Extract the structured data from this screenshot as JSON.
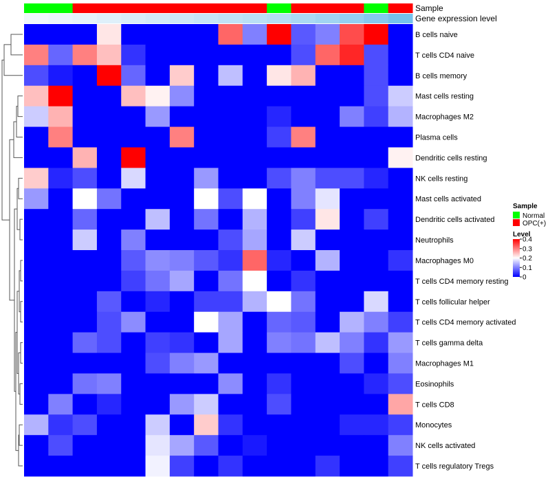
{
  "chart_data": {
    "type": "heatmap",
    "title": "",
    "annotation_rows": [
      {
        "label": "Sample",
        "values": [
          "Normal",
          "Normal",
          "OPC(+)",
          "OPC(+)",
          "OPC(+)",
          "OPC(+)",
          "OPC(+)",
          "OPC(+)",
          "OPC(+)",
          "OPC(+)",
          "Normal",
          "OPC(+)",
          "OPC(+)",
          "OPC(+)",
          "Normal",
          "OPC(+)"
        ]
      },
      {
        "label": "Gene expression level",
        "values": [
          0.02,
          0.05,
          0.08,
          0.12,
          0.16,
          0.2,
          0.24,
          0.28,
          0.32,
          0.36,
          0.4,
          0.46,
          0.52,
          0.6,
          0.7,
          0.8
        ]
      }
    ],
    "rows": [
      "B cells naive",
      "T cells CD4 naive",
      "B cells memory",
      "Mast cells resting",
      "Macrophages M2",
      "Plasma cells",
      "Dendritic cells resting",
      "NK cells resting",
      "Mast cells activated",
      "Dendritic cells activated",
      "Neutrophils",
      "Macrophages M0",
      "T cells CD4 memory resting",
      "T cells follicular helper",
      "T cells CD4 memory activated",
      "T cells gamma delta",
      "Macrophages M1",
      "Eosinophils",
      "T cells CD8",
      "Monocytes",
      "NK cells activated",
      "T cells regulatory  Tregs"
    ],
    "values": [
      [
        0.0,
        0.0,
        0.0,
        0.22,
        0.0,
        0.0,
        0.0,
        0.0,
        0.32,
        0.1,
        0.4,
        0.07,
        0.1,
        0.34,
        0.4,
        0.0
      ],
      [
        0.3,
        0.08,
        0.3,
        0.25,
        0.04,
        0.0,
        0.0,
        0.0,
        0.0,
        0.0,
        0.0,
        0.06,
        0.32,
        0.37,
        0.06,
        0.0
      ],
      [
        0.06,
        0.02,
        0.0,
        0.4,
        0.08,
        0.0,
        0.24,
        0.0,
        0.15,
        0.0,
        0.22,
        0.26,
        0.0,
        0.0,
        0.06,
        0.0
      ],
      [
        0.25,
        0.4,
        0.0,
        0.0,
        0.25,
        0.21,
        0.11,
        0.0,
        0.0,
        0.0,
        0.0,
        0.0,
        0.0,
        0.0,
        0.06,
        0.16
      ],
      [
        0.16,
        0.26,
        0.0,
        0.0,
        0.0,
        0.12,
        0.0,
        0.0,
        0.0,
        0.0,
        0.03,
        0.0,
        0.0,
        0.1,
        0.05,
        0.14
      ],
      [
        0.0,
        0.3,
        0.0,
        0.0,
        0.0,
        0.0,
        0.3,
        0.0,
        0.0,
        0.0,
        0.05,
        0.3,
        0.0,
        0.0,
        0.0,
        0.0
      ],
      [
        0.0,
        0.0,
        0.26,
        0.0,
        0.4,
        0.0,
        0.0,
        0.0,
        0.0,
        0.0,
        0.0,
        0.0,
        0.0,
        0.0,
        0.0,
        0.21
      ],
      [
        0.24,
        0.03,
        0.06,
        0.0,
        0.17,
        0.0,
        0.0,
        0.12,
        0.0,
        0.0,
        0.06,
        0.1,
        0.06,
        0.06,
        0.03,
        0.0
      ],
      [
        0.12,
        0.0,
        0.2,
        0.09,
        0.0,
        0.0,
        0.0,
        0.2,
        0.06,
        0.2,
        0.0,
        0.1,
        0.18,
        0.0,
        0.0,
        0.0
      ],
      [
        0.0,
        0.0,
        0.08,
        0.0,
        0.0,
        0.15,
        0.0,
        0.09,
        0.0,
        0.14,
        0.0,
        0.05,
        0.22,
        0.0,
        0.05,
        0.0
      ],
      [
        0.0,
        0.0,
        0.16,
        0.0,
        0.1,
        0.0,
        0.0,
        0.0,
        0.06,
        0.13,
        0.0,
        0.16,
        0.0,
        0.0,
        0.0,
        0.0
      ],
      [
        0.0,
        0.0,
        0.0,
        0.0,
        0.07,
        0.11,
        0.1,
        0.07,
        0.04,
        0.32,
        0.03,
        0.0,
        0.14,
        0.0,
        0.0,
        0.04
      ],
      [
        0.0,
        0.0,
        0.0,
        0.0,
        0.05,
        0.09,
        0.13,
        0.0,
        0.09,
        0.2,
        0.0,
        0.04,
        0.0,
        0.0,
        0.0,
        0.0
      ],
      [
        0.0,
        0.0,
        0.0,
        0.07,
        0.0,
        0.03,
        0.0,
        0.05,
        0.05,
        0.14,
        0.2,
        0.09,
        0.0,
        0.0,
        0.17,
        0.0
      ],
      [
        0.0,
        0.0,
        0.0,
        0.06,
        0.11,
        0.0,
        0.0,
        0.2,
        0.13,
        0.0,
        0.08,
        0.07,
        0.0,
        0.14,
        0.1,
        0.05
      ],
      [
        0.0,
        0.0,
        0.08,
        0.06,
        0.0,
        0.05,
        0.04,
        0.0,
        0.13,
        0.0,
        0.1,
        0.09,
        0.15,
        0.1,
        0.04,
        0.12
      ],
      [
        0.0,
        0.0,
        0.0,
        0.0,
        0.0,
        0.06,
        0.1,
        0.12,
        0.0,
        0.0,
        0.0,
        0.0,
        0.0,
        0.06,
        0.0,
        0.1
      ],
      [
        0.0,
        0.0,
        0.09,
        0.1,
        0.0,
        0.0,
        0.0,
        0.0,
        0.11,
        0.0,
        0.04,
        0.0,
        0.0,
        0.0,
        0.03,
        0.06
      ],
      [
        0.0,
        0.1,
        0.0,
        0.03,
        0.0,
        0.0,
        0.12,
        0.16,
        0.0,
        0.0,
        0.06,
        0.0,
        0.0,
        0.0,
        0.0,
        0.27
      ],
      [
        0.14,
        0.04,
        0.06,
        0.0,
        0.0,
        0.16,
        0.0,
        0.24,
        0.04,
        0.0,
        0.0,
        0.0,
        0.0,
        0.03,
        0.03,
        0.05
      ],
      [
        0.0,
        0.06,
        0.0,
        0.0,
        0.0,
        0.18,
        0.13,
        0.07,
        0.0,
        0.02,
        0.0,
        0.0,
        0.0,
        0.0,
        0.0,
        0.1
      ],
      [
        0.0,
        0.0,
        0.0,
        0.0,
        0.0,
        0.19,
        0.05,
        0.0,
        0.04,
        0.0,
        0.0,
        0.0,
        0.04,
        0.0,
        0.0,
        0.05
      ]
    ],
    "color_scale": {
      "min": 0,
      "mid": 0.2,
      "max": 0.4,
      "low_color": "#0000ff",
      "mid_color": "#ffffff",
      "high_color": "#ff0000"
    },
    "annotation_colors": {
      "Normal": "#00ff00",
      "OPC(+)": "#ff0000",
      "gradient_low": "#f2f8fc",
      "gradient_high": "#56b4e9"
    },
    "legend": {
      "sample_title": "Sample",
      "sample_entries": [
        "Normal",
        "OPC(+)"
      ],
      "level_title": "Level",
      "level_ticks": [
        0.4,
        0.3,
        0.2,
        0.1,
        0
      ]
    }
  }
}
